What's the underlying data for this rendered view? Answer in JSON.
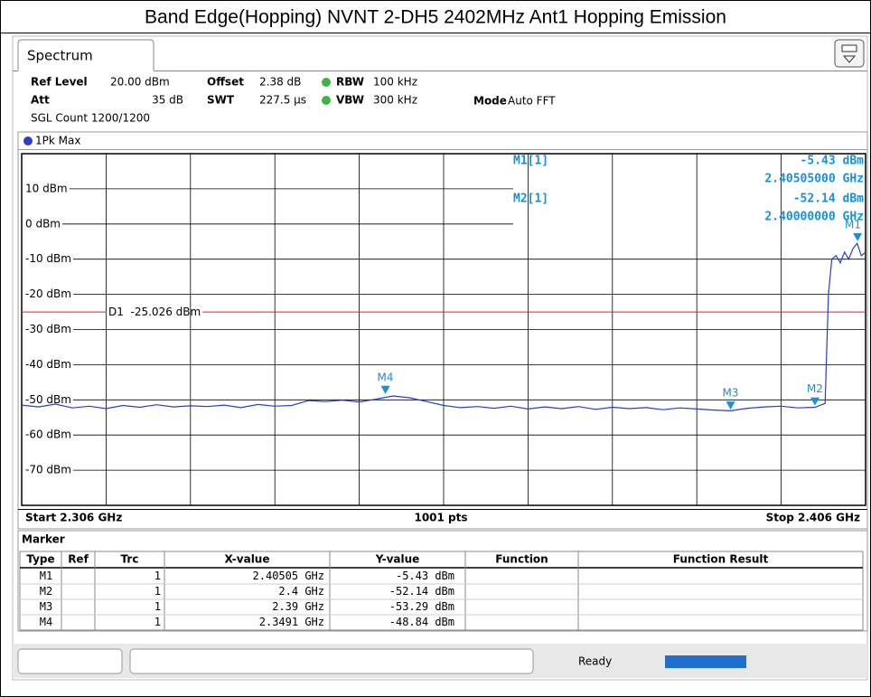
{
  "title": "Band Edge(Hopping) NVNT 2-DH5 2402MHz Ant1 Hopping Emission",
  "tab": "Spectrum",
  "settings": {
    "ref_level_label": "Ref Level",
    "ref_level": "20.00 dBm",
    "offset_label": "Offset",
    "offset": "2.38 dB",
    "rbw_label": "RBW",
    "rbw": "100 kHz",
    "att_label": "Att",
    "att": "35 dB",
    "swt_label": "SWT",
    "swt": "227.5 µs",
    "vbw_label": "VBW",
    "vbw": "300 kHz",
    "mode_label": "Mode",
    "mode": "Auto FFT",
    "sgl_count": "SGL Count 1200/1200"
  },
  "chart_data": {
    "type": "line",
    "x": [
      2.306,
      2.308,
      2.31,
      2.312,
      2.314,
      2.316,
      2.318,
      2.32,
      2.322,
      2.324,
      2.326,
      2.328,
      2.33,
      2.332,
      2.334,
      2.336,
      2.338,
      2.34,
      2.342,
      2.344,
      2.346,
      2.348,
      2.35,
      2.352,
      2.354,
      2.356,
      2.358,
      2.36,
      2.362,
      2.364,
      2.366,
      2.368,
      2.37,
      2.372,
      2.374,
      2.376,
      2.378,
      2.38,
      2.382,
      2.384,
      2.386,
      2.388,
      2.39,
      2.392,
      2.394,
      2.396,
      2.398,
      2.4,
      2.4012,
      2.4016,
      2.402,
      2.4025,
      2.403,
      2.4035,
      2.404,
      2.4045,
      2.405,
      2.4055,
      2.406
    ],
    "series": [
      {
        "name": "1Pk Max",
        "color": "#2a3fc8",
        "values": [
          -51.5,
          -52,
          -51.2,
          -52.3,
          -51.8,
          -52.5,
          -51.6,
          -52.1,
          -51.4,
          -52,
          -51.7,
          -51.9,
          -51.5,
          -52.2,
          -51.3,
          -51.8,
          -51.6,
          -50.2,
          -50.5,
          -50.1,
          -50.6,
          -49.8,
          -48.9,
          -49.4,
          -50.5,
          -51.6,
          -52.2,
          -51.9,
          -52.4,
          -51.8,
          -52.6,
          -52,
          -52.5,
          -51.9,
          -52.7,
          -52.1,
          -52.5,
          -52.2,
          -52.8,
          -52.3,
          -52.6,
          -52.9,
          -53.1,
          -52.4,
          -52,
          -51.8,
          -52.3,
          -52.1,
          -51,
          -20,
          -10,
          -9,
          -11,
          -8,
          -10,
          -7,
          -5.5,
          -9,
          -8
        ]
      }
    ],
    "xlim": [
      2.306,
      2.406
    ],
    "ylim": [
      -80,
      20
    ],
    "yticks": [
      {
        "value": 10,
        "label": "10 dBm"
      },
      {
        "value": 0,
        "label": "0 dBm"
      },
      {
        "value": -10,
        "label": "-10 dBm"
      },
      {
        "value": -20,
        "label": "-20 dBm"
      },
      {
        "value": -30,
        "label": "-30 dBm"
      },
      {
        "value": -40,
        "label": "-40 dBm"
      },
      {
        "value": -50,
        "label": "-50 dBm"
      },
      {
        "value": -60,
        "label": "-60 dBm"
      },
      {
        "value": -70,
        "label": "-70 dBm"
      }
    ],
    "grid": true,
    "threshold": {
      "name": "D1",
      "value": -25.026,
      "value_label": "-25.026 dBm",
      "color": "#e02020"
    },
    "marker_color": "#1a8fd6",
    "markers": [
      {
        "name": "M1",
        "x": 2.40505,
        "y": -5.43
      },
      {
        "name": "M2",
        "x": 2.4,
        "y": -52.14
      },
      {
        "name": "M3",
        "x": 2.39,
        "y": -53.29
      },
      {
        "name": "M4",
        "x": 2.3491,
        "y": -48.84
      }
    ],
    "marker_info": [
      {
        "name": "M1[1]",
        "y_label": "-5.43 dBm",
        "x_label": "2.40505000 GHz"
      },
      {
        "name": "M2[1]",
        "y_label": "-52.14 dBm",
        "x_label": "2.40000000 GHz"
      }
    ],
    "start": "Start 2.306 GHz",
    "points": "1001 pts",
    "stop": "Stop 2.406 GHz"
  },
  "marker_table": {
    "title": "Marker",
    "columns": [
      "Type",
      "Ref",
      "Trc",
      "X-value",
      "Y-value",
      "Function",
      "Function Result"
    ],
    "rows": [
      {
        "type": "M1",
        "trc": "1",
        "x": "2.40505 GHz",
        "y": "-5.43 dBm"
      },
      {
        "type": "M2",
        "trc": "1",
        "x": "2.4 GHz",
        "y": "-52.14 dBm"
      },
      {
        "type": "M3",
        "trc": "1",
        "x": "2.39 GHz",
        "y": "-53.29 dBm"
      },
      {
        "type": "M4",
        "trc": "1",
        "x": "2.3491 GHz",
        "y": "-48.84 dBm"
      }
    ]
  },
  "status": "Ready"
}
